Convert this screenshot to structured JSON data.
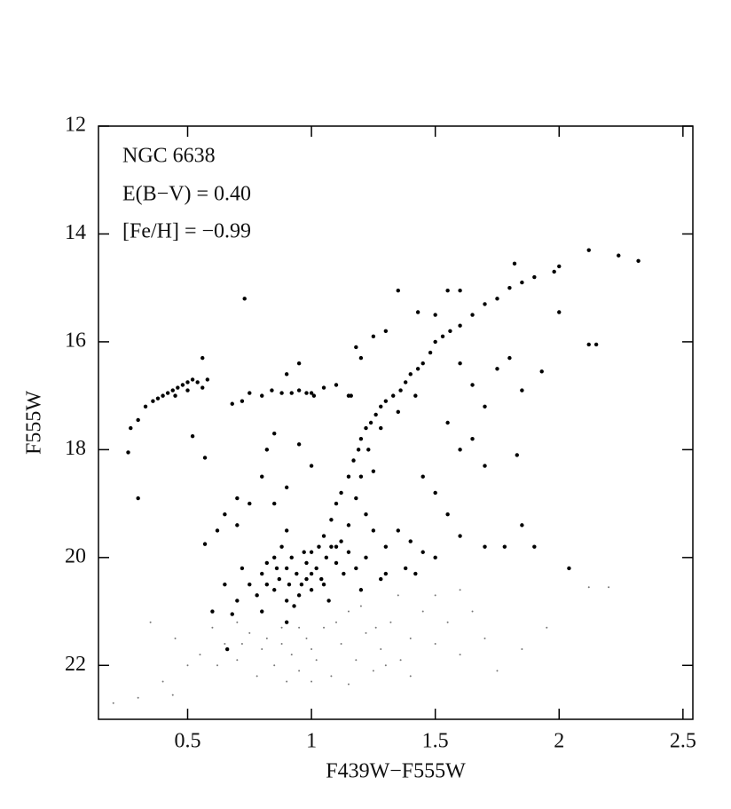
{
  "chart_data": {
    "type": "scatter",
    "xlabel": "F439W−F555W",
    "ylabel": "F555W",
    "annotations": [
      "NGC 6638",
      "E(B−V) = 0.40",
      "[Fe/H] = −0.99"
    ],
    "xlim": [
      0.14,
      2.54
    ],
    "ylim": [
      12,
      23
    ],
    "invert_y": true,
    "xticks": [
      0.5,
      1,
      1.5,
      2,
      2.5
    ],
    "yticks": [
      12,
      14,
      16,
      18,
      20,
      22
    ],
    "grid": false,
    "series": [
      {
        "color": "#000000",
        "size": 2.2,
        "x": [
          0.27,
          0.3,
          0.33,
          0.36,
          0.38,
          0.4,
          0.42,
          0.44,
          0.46,
          0.48,
          0.5,
          0.52,
          0.54,
          0.56,
          0.58,
          0.45,
          0.5,
          0.26,
          0.3,
          0.57,
          0.56,
          0.52,
          0.57,
          0.72,
          0.75,
          0.8,
          0.84,
          0.88,
          0.92,
          0.95,
          0.98,
          1.0,
          1.01,
          1.05,
          1.1,
          0.95,
          0.9,
          1.15,
          0.73,
          0.68,
          1.05,
          1.08,
          1.1,
          1.12,
          1.15,
          1.17,
          1.19,
          1.2,
          1.22,
          1.24,
          1.26,
          1.28,
          1.3,
          1.33,
          1.36,
          1.38,
          1.4,
          1.43,
          1.45,
          1.48,
          1.5,
          1.53,
          1.56,
          1.6,
          1.65,
          1.7,
          1.75,
          1.8,
          1.85,
          1.9,
          2.0,
          2.12,
          2.24,
          2.32,
          1.98,
          1.43,
          1.5,
          1.55,
          1.6,
          1.82,
          1.35,
          1.3,
          1.25,
          1.2,
          1.18,
          1.16,
          1.2,
          1.18,
          1.22,
          1.25,
          1.15,
          1.1,
          1.3,
          1.35,
          1.4,
          1.45,
          1.5,
          1.25,
          1.23,
          1.28,
          1.35,
          1.42,
          1.6,
          1.65,
          1.7,
          1.75,
          1.8,
          1.85,
          1.93,
          2.0,
          2.12,
          2.15,
          1.83,
          1.7,
          1.65,
          1.55,
          1.6,
          1.6,
          1.7,
          1.78,
          1.85,
          1.9,
          2.04,
          1.55,
          1.5,
          1.45,
          0.8,
          0.75,
          0.65,
          0.62,
          0.7,
          0.85,
          0.9,
          0.85,
          0.95,
          1.0,
          0.82,
          0.7,
          0.9,
          0.65,
          0.6,
          0.8,
          0.82,
          0.85,
          0.87,
          0.9,
          0.92,
          0.94,
          0.96,
          0.98,
          1.0,
          1.02,
          1.04,
          1.06,
          1.08,
          1.1,
          1.12,
          0.75,
          0.78,
          0.85,
          0.9,
          0.95,
          1.0,
          1.05,
          0.72,
          0.7,
          0.88,
          0.93,
          0.98,
          1.0,
          0.86,
          0.82,
          0.91,
          0.97,
          1.03,
          1.13,
          1.18,
          1.22,
          1.28,
          1.15,
          0.68,
          0.66,
          0.9,
          0.8,
          1.07,
          1.2,
          1.3,
          1.38,
          1.42
        ],
        "values": [
          17.6,
          17.45,
          17.2,
          17.1,
          17.05,
          17.0,
          16.95,
          16.9,
          16.85,
          16.8,
          16.75,
          16.7,
          16.75,
          16.85,
          16.7,
          17.0,
          16.9,
          18.05,
          18.9,
          18.15,
          16.3,
          17.75,
          19.75,
          17.1,
          16.95,
          17.0,
          16.9,
          16.95,
          16.95,
          16.9,
          16.95,
          16.95,
          17.0,
          16.85,
          16.8,
          16.4,
          16.6,
          17.0,
          15.2,
          17.15,
          19.6,
          19.3,
          19.0,
          18.8,
          18.5,
          18.2,
          18.0,
          17.8,
          17.6,
          17.5,
          17.35,
          17.2,
          17.1,
          17.0,
          16.9,
          16.75,
          16.6,
          16.5,
          16.4,
          16.2,
          16.0,
          15.9,
          15.8,
          15.7,
          15.5,
          15.3,
          15.2,
          15.0,
          14.9,
          14.8,
          14.6,
          14.3,
          14.4,
          14.5,
          14.7,
          15.45,
          15.5,
          15.05,
          15.05,
          14.55,
          15.05,
          15.8,
          15.9,
          16.3,
          16.1,
          17.0,
          18.5,
          18.9,
          19.2,
          19.5,
          19.4,
          19.8,
          19.8,
          19.5,
          19.7,
          19.9,
          20.0,
          18.4,
          18.0,
          17.6,
          17.3,
          17.0,
          16.4,
          16.8,
          17.2,
          16.5,
          16.3,
          16.9,
          16.55,
          15.45,
          16.05,
          16.05,
          18.1,
          18.3,
          17.8,
          17.5,
          18.0,
          19.6,
          19.8,
          19.8,
          19.4,
          19.8,
          20.2,
          19.2,
          18.8,
          18.5,
          18.5,
          19.0,
          19.2,
          19.5,
          19.4,
          19.0,
          18.7,
          17.7,
          17.9,
          18.3,
          18.0,
          18.9,
          19.5,
          20.5,
          21.0,
          20.3,
          20.1,
          20.0,
          20.4,
          20.2,
          20.0,
          20.3,
          20.5,
          20.1,
          19.9,
          20.2,
          20.4,
          20.0,
          19.8,
          20.1,
          19.7,
          20.5,
          20.7,
          20.6,
          20.8,
          20.7,
          20.6,
          20.5,
          20.2,
          20.8,
          19.8,
          20.9,
          20.4,
          20.3,
          20.2,
          20.5,
          20.5,
          19.9,
          19.8,
          20.3,
          20.2,
          20.0,
          20.4,
          19.9,
          21.05,
          21.7,
          21.2,
          21.0,
          20.8,
          20.6,
          20.3,
          20.2,
          20.3
        ]
      },
      {
        "color": "#777777",
        "size": 1,
        "x": [
          0.6,
          0.65,
          0.7,
          0.75,
          0.8,
          0.85,
          0.88,
          0.92,
          0.95,
          0.98,
          1.02,
          1.05,
          1.08,
          1.12,
          1.15,
          1.18,
          1.22,
          1.25,
          1.28,
          1.32,
          1.36,
          1.4,
          1.45,
          1.5,
          1.55,
          1.6,
          1.65,
          1.7,
          0.55,
          0.5,
          0.45,
          0.4,
          0.35,
          0.3,
          0.2,
          0.44,
          0.78,
          0.9,
          1.0,
          1.15,
          1.3,
          1.75,
          1.85,
          1.95,
          2.12,
          2.2,
          1.2,
          1.35,
          1.5,
          1.6,
          0.7,
          0.82,
          0.95,
          1.1,
          1.0,
          0.88,
          1.26,
          1.4,
          0.62,
          0.72
        ],
        "values": [
          21.3,
          21.6,
          21.9,
          21.4,
          21.7,
          22.0,
          21.3,
          21.8,
          22.1,
          21.5,
          21.9,
          21.3,
          22.2,
          21.6,
          21.0,
          21.9,
          21.4,
          22.1,
          21.7,
          21.2,
          21.9,
          21.5,
          21.0,
          21.6,
          21.2,
          21.8,
          21.0,
          21.5,
          21.8,
          22.0,
          21.5,
          22.3,
          21.2,
          22.6,
          22.7,
          22.55,
          22.2,
          22.3,
          22.3,
          22.35,
          22.0,
          22.1,
          21.7,
          21.3,
          20.55,
          20.55,
          20.9,
          20.7,
          20.7,
          20.6,
          21.2,
          21.5,
          21.3,
          21.2,
          21.7,
          21.6,
          21.3,
          22.2,
          22.0,
          21.6
        ]
      }
    ]
  }
}
